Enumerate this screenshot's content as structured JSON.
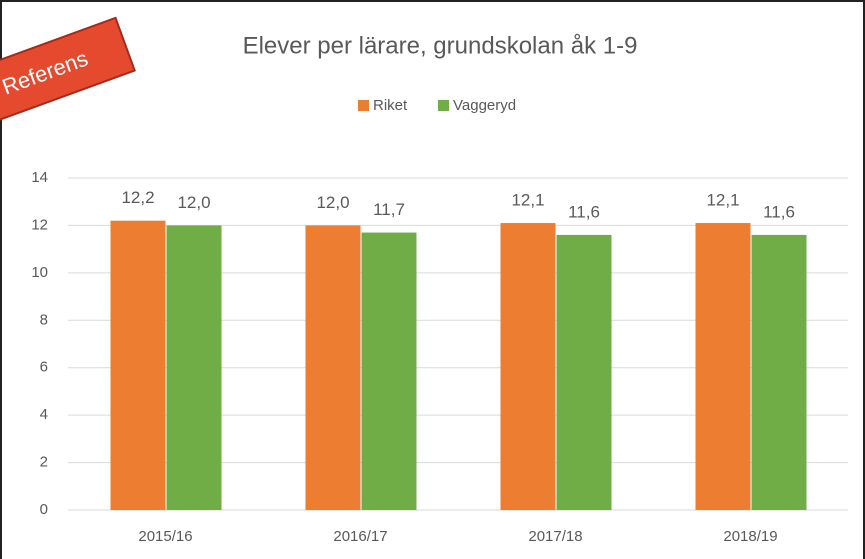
{
  "chart_data": {
    "type": "bar",
    "title": "Elever per lärare, grundskolan åk 1-9",
    "annotation": "Referens",
    "categories": [
      "2015/16",
      "2016/17",
      "2017/18",
      "2018/19"
    ],
    "series": [
      {
        "name": "Riket",
        "color": "#ed7d31",
        "values": [
          12.2,
          12.0,
          12.1,
          12.1
        ],
        "value_labels": [
          "12,2",
          "12,0",
          "12,1",
          "12,1"
        ]
      },
      {
        "name": "Vaggeryd",
        "color": "#70ad47",
        "values": [
          12.0,
          11.7,
          11.6,
          11.6
        ],
        "value_labels": [
          "12,0",
          "11,7",
          "11,6",
          "11,6"
        ]
      }
    ],
    "ylim": [
      0,
      14
    ],
    "yticks": [
      0,
      2,
      4,
      6,
      8,
      10,
      12,
      14
    ],
    "grid": true,
    "legend": "top"
  }
}
